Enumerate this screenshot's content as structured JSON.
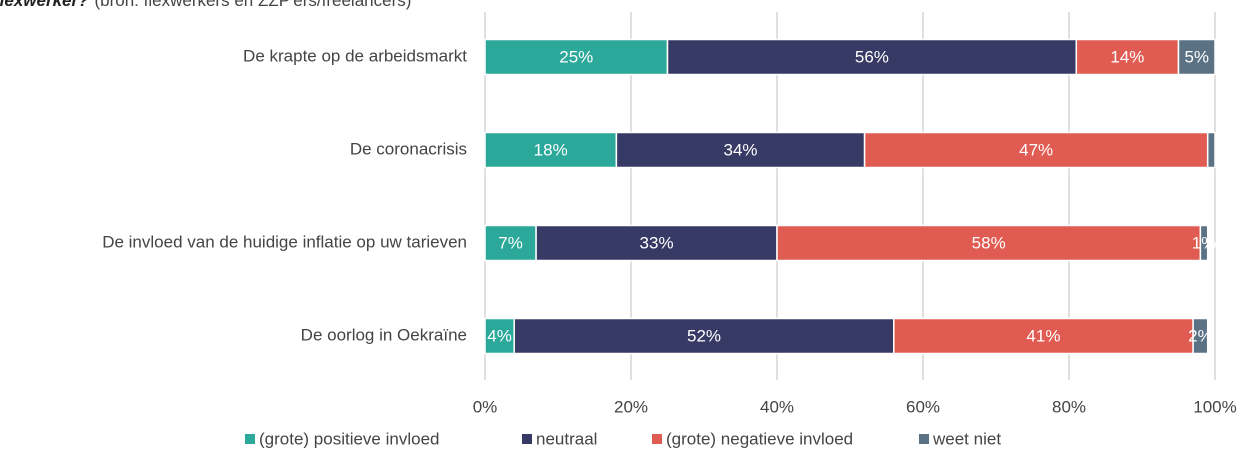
{
  "chart_data": {
    "type": "stacked_barh",
    "title": "flexwerker?",
    "subtitle": "(bron: flexwerkers en ZZP'ers/freelancers)",
    "categories": [
      "De krapte op de arbeidsmarkt",
      "De coronacrisis",
      "De invloed van de huidige inflatie op uw tarieven",
      "De oorlog in Oekraïne"
    ],
    "series": [
      {
        "name": "(grote) positieve invloed",
        "color": "#2ba89a",
        "values": [
          25,
          18,
          7,
          4
        ],
        "value_labels": [
          "25%",
          "18%",
          "7%",
          "4%"
        ]
      },
      {
        "name": "neutraal",
        "color": "#363a65",
        "values": [
          56,
          34,
          33,
          52
        ],
        "value_labels": [
          "56%",
          "34%",
          "33%",
          "52%"
        ]
      },
      {
        "name": "(grote) negatieve invloed",
        "color": "#e05c52",
        "values": [
          14,
          47,
          58,
          41
        ],
        "value_labels": [
          "14%",
          "47%",
          "58%",
          "41%"
        ]
      },
      {
        "name": "weet niet",
        "color": "#5b7285",
        "values": [
          5,
          1,
          1,
          2
        ],
        "value_labels": [
          "5%",
          null,
          "1%",
          "2%"
        ]
      }
    ],
    "xlim": [
      0,
      100
    ],
    "xticks": [
      {
        "value": 0,
        "label": "0%"
      },
      {
        "value": 20,
        "label": "20%"
      },
      {
        "value": 40,
        "label": "40%"
      },
      {
        "value": 60,
        "label": "60%"
      },
      {
        "value": 80,
        "label": "80%"
      },
      {
        "value": 100,
        "label": "100%"
      }
    ],
    "grid": true,
    "legend": "bottom"
  }
}
